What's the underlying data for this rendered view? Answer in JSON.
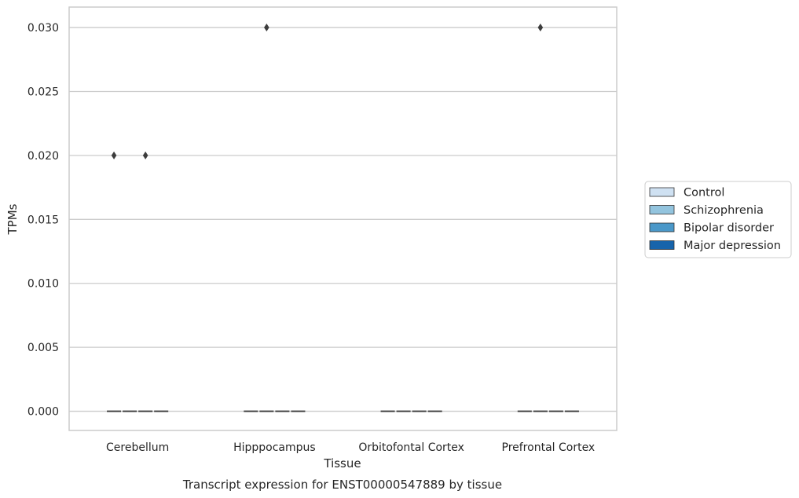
{
  "chart_data": {
    "type": "box",
    "title": "Transcript expression for ENST00000547889 by tissue",
    "xlabel": "Tissue",
    "ylabel": "TPMs",
    "categories": [
      "Cerebellum",
      "Hipppocampus",
      "Orbitofontal Cortex",
      "Prefrontal Cortex"
    ],
    "ylim": [
      -0.0015,
      0.0316
    ],
    "yticks": [
      "0.000",
      "0.005",
      "0.010",
      "0.015",
      "0.020",
      "0.025",
      "0.030"
    ],
    "ytick_values": [
      0,
      0.005,
      0.01,
      0.015,
      0.02,
      0.025,
      0.03
    ],
    "grid": "horizontal",
    "legend_position": "right",
    "series": [
      {
        "name": "Control",
        "color": "#cfe1f2",
        "median": [
          0,
          0,
          0,
          0
        ],
        "outliers": [
          [
            0.02
          ],
          [],
          [],
          []
        ]
      },
      {
        "name": "Schizophrenia",
        "color": "#93c4de",
        "median": [
          0,
          0,
          0,
          0
        ],
        "outliers": [
          [],
          [
            0.03
          ],
          [],
          [
            0.03
          ]
        ]
      },
      {
        "name": "Bipolar disorder",
        "color": "#4a98c9",
        "median": [
          0,
          0,
          0,
          0
        ],
        "outliers": [
          [
            0.02
          ],
          [],
          [],
          []
        ]
      },
      {
        "name": "Major depression",
        "color": "#1764ab",
        "median": [
          0,
          0,
          0,
          0
        ],
        "outliers": [
          [],
          [],
          [],
          []
        ]
      }
    ]
  }
}
